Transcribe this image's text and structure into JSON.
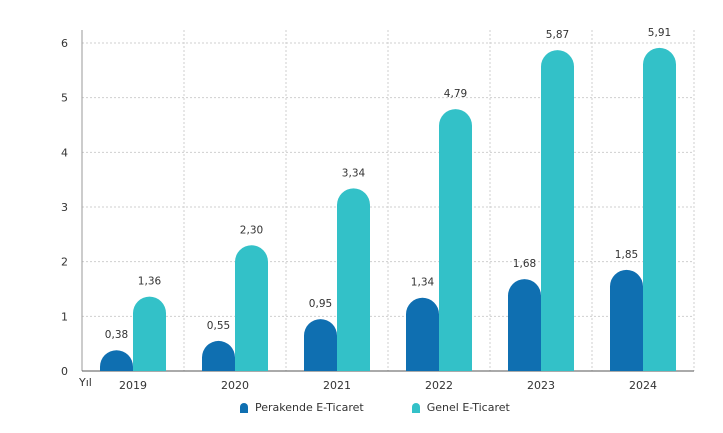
{
  "chart_data": {
    "type": "bar",
    "x_axis_unit_label": "Yıl",
    "categories": [
      "2019",
      "2020",
      "2021",
      "2022",
      "2023",
      "2024"
    ],
    "series": [
      {
        "name": "Perakende E-Ticaret",
        "color": "#0f6fb1",
        "values": [
          0.38,
          0.55,
          0.95,
          1.34,
          1.68,
          1.85
        ],
        "labels": [
          "0,38",
          "0,55",
          "0,95",
          "1,34",
          "1,68",
          "1,85"
        ]
      },
      {
        "name": "Genel E-Ticaret",
        "color": "#33c1c8",
        "values": [
          1.36,
          2.3,
          3.34,
          4.79,
          5.87,
          5.91
        ],
        "labels": [
          "1,36",
          "2,30",
          "3,34",
          "4,79",
          "5,87",
          "5,91"
        ]
      }
    ],
    "yticks": [
      "0",
      "1",
      "2",
      "3",
      "4",
      "5",
      "6"
    ],
    "ylim": [
      0,
      6
    ],
    "grid": true,
    "legend_position": "bottom-center"
  }
}
